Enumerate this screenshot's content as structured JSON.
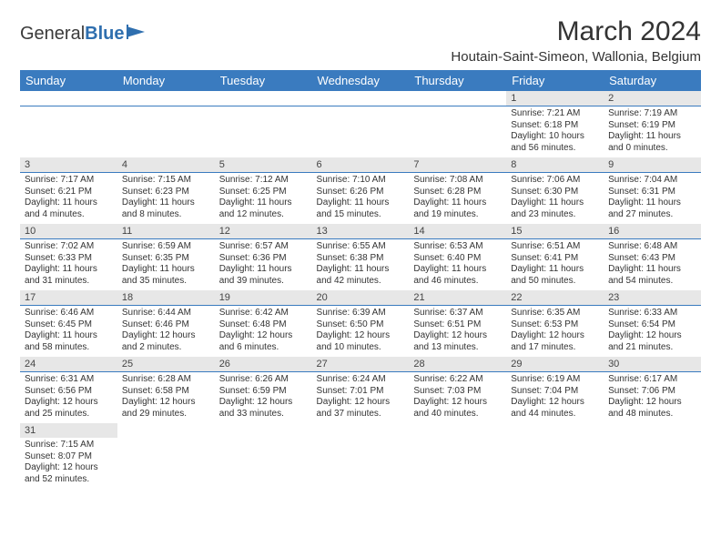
{
  "logo": {
    "part1": "General",
    "part2": "Blue"
  },
  "title": {
    "month": "March 2024",
    "location": "Houtain-Saint-Simeon, Wallonia, Belgium"
  },
  "headerDays": [
    "Sunday",
    "Monday",
    "Tuesday",
    "Wednesday",
    "Thursday",
    "Friday",
    "Saturday"
  ],
  "colors": {
    "headerBg": "#3a7bbf",
    "headerText": "#ffffff",
    "dayStripBg": "#e7e7e7",
    "cellRule": "#3a7bbf",
    "bodyText": "#333333",
    "logoAccent": "#2f6faf"
  },
  "weeks": [
    [
      null,
      null,
      null,
      null,
      null,
      {
        "n": "1",
        "sunrise": "Sunrise: 7:21 AM",
        "sunset": "Sunset: 6:18 PM",
        "daylight": "Daylight: 10 hours and 56 minutes."
      },
      {
        "n": "2",
        "sunrise": "Sunrise: 7:19 AM",
        "sunset": "Sunset: 6:19 PM",
        "daylight": "Daylight: 11 hours and 0 minutes."
      }
    ],
    [
      {
        "n": "3",
        "sunrise": "Sunrise: 7:17 AM",
        "sunset": "Sunset: 6:21 PM",
        "daylight": "Daylight: 11 hours and 4 minutes."
      },
      {
        "n": "4",
        "sunrise": "Sunrise: 7:15 AM",
        "sunset": "Sunset: 6:23 PM",
        "daylight": "Daylight: 11 hours and 8 minutes."
      },
      {
        "n": "5",
        "sunrise": "Sunrise: 7:12 AM",
        "sunset": "Sunset: 6:25 PM",
        "daylight": "Daylight: 11 hours and 12 minutes."
      },
      {
        "n": "6",
        "sunrise": "Sunrise: 7:10 AM",
        "sunset": "Sunset: 6:26 PM",
        "daylight": "Daylight: 11 hours and 15 minutes."
      },
      {
        "n": "7",
        "sunrise": "Sunrise: 7:08 AM",
        "sunset": "Sunset: 6:28 PM",
        "daylight": "Daylight: 11 hours and 19 minutes."
      },
      {
        "n": "8",
        "sunrise": "Sunrise: 7:06 AM",
        "sunset": "Sunset: 6:30 PM",
        "daylight": "Daylight: 11 hours and 23 minutes."
      },
      {
        "n": "9",
        "sunrise": "Sunrise: 7:04 AM",
        "sunset": "Sunset: 6:31 PM",
        "daylight": "Daylight: 11 hours and 27 minutes."
      }
    ],
    [
      {
        "n": "10",
        "sunrise": "Sunrise: 7:02 AM",
        "sunset": "Sunset: 6:33 PM",
        "daylight": "Daylight: 11 hours and 31 minutes."
      },
      {
        "n": "11",
        "sunrise": "Sunrise: 6:59 AM",
        "sunset": "Sunset: 6:35 PM",
        "daylight": "Daylight: 11 hours and 35 minutes."
      },
      {
        "n": "12",
        "sunrise": "Sunrise: 6:57 AM",
        "sunset": "Sunset: 6:36 PM",
        "daylight": "Daylight: 11 hours and 39 minutes."
      },
      {
        "n": "13",
        "sunrise": "Sunrise: 6:55 AM",
        "sunset": "Sunset: 6:38 PM",
        "daylight": "Daylight: 11 hours and 42 minutes."
      },
      {
        "n": "14",
        "sunrise": "Sunrise: 6:53 AM",
        "sunset": "Sunset: 6:40 PM",
        "daylight": "Daylight: 11 hours and 46 minutes."
      },
      {
        "n": "15",
        "sunrise": "Sunrise: 6:51 AM",
        "sunset": "Sunset: 6:41 PM",
        "daylight": "Daylight: 11 hours and 50 minutes."
      },
      {
        "n": "16",
        "sunrise": "Sunrise: 6:48 AM",
        "sunset": "Sunset: 6:43 PM",
        "daylight": "Daylight: 11 hours and 54 minutes."
      }
    ],
    [
      {
        "n": "17",
        "sunrise": "Sunrise: 6:46 AM",
        "sunset": "Sunset: 6:45 PM",
        "daylight": "Daylight: 11 hours and 58 minutes."
      },
      {
        "n": "18",
        "sunrise": "Sunrise: 6:44 AM",
        "sunset": "Sunset: 6:46 PM",
        "daylight": "Daylight: 12 hours and 2 minutes."
      },
      {
        "n": "19",
        "sunrise": "Sunrise: 6:42 AM",
        "sunset": "Sunset: 6:48 PM",
        "daylight": "Daylight: 12 hours and 6 minutes."
      },
      {
        "n": "20",
        "sunrise": "Sunrise: 6:39 AM",
        "sunset": "Sunset: 6:50 PM",
        "daylight": "Daylight: 12 hours and 10 minutes."
      },
      {
        "n": "21",
        "sunrise": "Sunrise: 6:37 AM",
        "sunset": "Sunset: 6:51 PM",
        "daylight": "Daylight: 12 hours and 13 minutes."
      },
      {
        "n": "22",
        "sunrise": "Sunrise: 6:35 AM",
        "sunset": "Sunset: 6:53 PM",
        "daylight": "Daylight: 12 hours and 17 minutes."
      },
      {
        "n": "23",
        "sunrise": "Sunrise: 6:33 AM",
        "sunset": "Sunset: 6:54 PM",
        "daylight": "Daylight: 12 hours and 21 minutes."
      }
    ],
    [
      {
        "n": "24",
        "sunrise": "Sunrise: 6:31 AM",
        "sunset": "Sunset: 6:56 PM",
        "daylight": "Daylight: 12 hours and 25 minutes."
      },
      {
        "n": "25",
        "sunrise": "Sunrise: 6:28 AM",
        "sunset": "Sunset: 6:58 PM",
        "daylight": "Daylight: 12 hours and 29 minutes."
      },
      {
        "n": "26",
        "sunrise": "Sunrise: 6:26 AM",
        "sunset": "Sunset: 6:59 PM",
        "daylight": "Daylight: 12 hours and 33 minutes."
      },
      {
        "n": "27",
        "sunrise": "Sunrise: 6:24 AM",
        "sunset": "Sunset: 7:01 PM",
        "daylight": "Daylight: 12 hours and 37 minutes."
      },
      {
        "n": "28",
        "sunrise": "Sunrise: 6:22 AM",
        "sunset": "Sunset: 7:03 PM",
        "daylight": "Daylight: 12 hours and 40 minutes."
      },
      {
        "n": "29",
        "sunrise": "Sunrise: 6:19 AM",
        "sunset": "Sunset: 7:04 PM",
        "daylight": "Daylight: 12 hours and 44 minutes."
      },
      {
        "n": "30",
        "sunrise": "Sunrise: 6:17 AM",
        "sunset": "Sunset: 7:06 PM",
        "daylight": "Daylight: 12 hours and 48 minutes."
      }
    ],
    [
      {
        "n": "31",
        "sunrise": "Sunrise: 7:15 AM",
        "sunset": "Sunset: 8:07 PM",
        "daylight": "Daylight: 12 hours and 52 minutes."
      },
      null,
      null,
      null,
      null,
      null,
      null
    ]
  ]
}
